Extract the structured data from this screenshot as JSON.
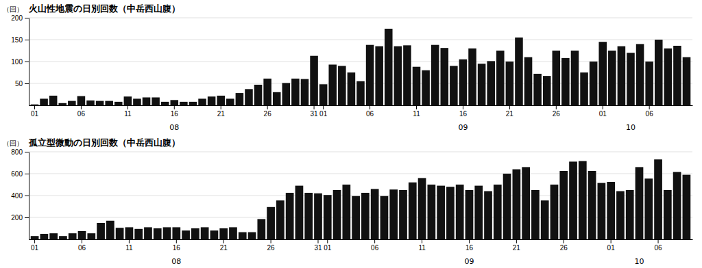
{
  "chart_data": [
    {
      "type": "bar",
      "title": "火山性地震の日別回数（中岳西山腹）",
      "y_label": "（回）",
      "categories": [
        "01",
        null,
        null,
        null,
        null,
        "06",
        null,
        null,
        null,
        null,
        "11",
        null,
        null,
        null,
        null,
        "16",
        null,
        null,
        null,
        null,
        "21",
        null,
        null,
        null,
        null,
        "26",
        null,
        null,
        null,
        null,
        "31",
        "01",
        null,
        null,
        null,
        null,
        "06",
        null,
        null,
        null,
        null,
        "11",
        null,
        null,
        null,
        null,
        "16",
        null,
        null,
        null,
        null,
        "21",
        null,
        null,
        null,
        null,
        "26",
        null,
        null,
        null,
        null,
        "01",
        null,
        null,
        null,
        null,
        "06",
        null,
        null,
        null,
        null
      ],
      "values": [
        2,
        15,
        22,
        5,
        10,
        21,
        11,
        10,
        10,
        8,
        20,
        15,
        18,
        18,
        8,
        12,
        8,
        8,
        15,
        20,
        22,
        15,
        28,
        37,
        47,
        61,
        30,
        51,
        61,
        60,
        113,
        48,
        93,
        90,
        75,
        55,
        138,
        135,
        175,
        135,
        137,
        88,
        80,
        138,
        131,
        90,
        105,
        130,
        95,
        101,
        125,
        100,
        155,
        110,
        72,
        67,
        125,
        108,
        125,
        75,
        100,
        145,
        125,
        135,
        120,
        140,
        100,
        150,
        130,
        136,
        110
      ],
      "color": "#111111",
      "ylim": [
        0,
        200
      ],
      "yticks": [
        50,
        100,
        150,
        200
      ],
      "grid": true,
      "annotations": [
        {
          "text": "08",
          "x": 15
        },
        {
          "text": "09",
          "x": 46
        },
        {
          "text": "10",
          "x": 64
        }
      ]
    },
    {
      "type": "bar",
      "title": "孤立型微動の日別回数（中岳西山腹）",
      "y_label": "（回）",
      "categories": [
        "01",
        null,
        null,
        null,
        null,
        "06",
        null,
        null,
        null,
        null,
        "11",
        null,
        null,
        null,
        null,
        "16",
        null,
        null,
        null,
        null,
        "21",
        null,
        null,
        null,
        null,
        "26",
        null,
        null,
        null,
        null,
        "31",
        "01",
        null,
        null,
        null,
        null,
        "06",
        null,
        null,
        null,
        null,
        "11",
        null,
        null,
        null,
        null,
        "16",
        null,
        null,
        null,
        null,
        "21",
        null,
        null,
        null,
        null,
        "26",
        null,
        null,
        null,
        null,
        "01",
        null,
        null,
        null,
        null,
        "06",
        null,
        null,
        null
      ],
      "values": [
        30,
        50,
        55,
        30,
        55,
        75,
        55,
        150,
        170,
        105,
        110,
        95,
        110,
        100,
        110,
        110,
        80,
        100,
        110,
        80,
        100,
        110,
        65,
        65,
        185,
        295,
        355,
        425,
        490,
        425,
        420,
        405,
        450,
        500,
        395,
        425,
        460,
        395,
        455,
        450,
        520,
        560,
        500,
        490,
        480,
        500,
        450,
        490,
        440,
        500,
        600,
        640,
        660,
        450,
        355,
        500,
        625,
        710,
        715,
        625,
        515,
        525,
        440,
        450,
        660,
        555,
        730,
        450,
        615,
        590
      ],
      "color": "#111111",
      "ylim": [
        0,
        800
      ],
      "yticks": [
        200,
        400,
        600,
        800
      ],
      "grid": true,
      "annotations": [
        {
          "text": "08",
          "x": 15
        },
        {
          "text": "09",
          "x": 46
        },
        {
          "text": "10",
          "x": 64
        }
      ]
    }
  ]
}
